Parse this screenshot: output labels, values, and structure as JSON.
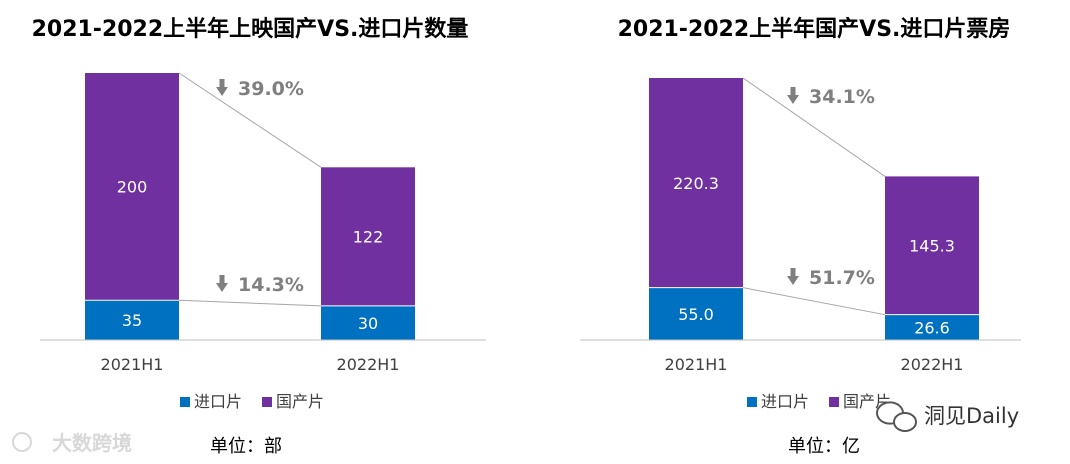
{
  "chart_data": [
    {
      "type": "bar",
      "stacked": true,
      "title": "2021-2022上半年上映国产VS.进口片数量",
      "categories": [
        "2021H1",
        "2022H1"
      ],
      "series": [
        {
          "name": "进口片",
          "values": [
            35,
            30
          ],
          "color": "#0070c0"
        },
        {
          "name": "国产片",
          "values": [
            200,
            122
          ],
          "color": "#7030a0"
        }
      ],
      "value_labels": {
        "进口片": [
          "35",
          "30"
        ],
        "国产片": [
          "200",
          "122"
        ]
      },
      "changes": {
        "total": "39.0%",
        "进口片": "14.3%"
      },
      "unit": "单位：部",
      "legend_position": "bottom",
      "ylim": [
        0,
        235
      ]
    },
    {
      "type": "bar",
      "stacked": true,
      "title": "2021-2022上半年国产VS.进口片票房",
      "categories": [
        "2021H1",
        "2022H1"
      ],
      "series": [
        {
          "name": "进口片",
          "values": [
            55.0,
            26.6
          ],
          "color": "#0070c0"
        },
        {
          "name": "国产片",
          "values": [
            220.3,
            145.3
          ],
          "color": "#7030a0"
        }
      ],
      "value_labels": {
        "进口片": [
          "55.0",
          "26.6"
        ],
        "国产片": [
          "220.3",
          "145.3"
        ]
      },
      "changes": {
        "total": "34.1%",
        "进口片": "51.7%"
      },
      "unit": "单位：亿",
      "legend_position": "bottom",
      "ylim": [
        0,
        275.3
      ]
    }
  ],
  "watermarks": {
    "left": "大数跨境",
    "right": "洞见Daily"
  },
  "icons": {
    "arrow": "down-arrow-icon",
    "left_logo": "weibo-style-icon",
    "right_logo": "wechat-icon"
  }
}
